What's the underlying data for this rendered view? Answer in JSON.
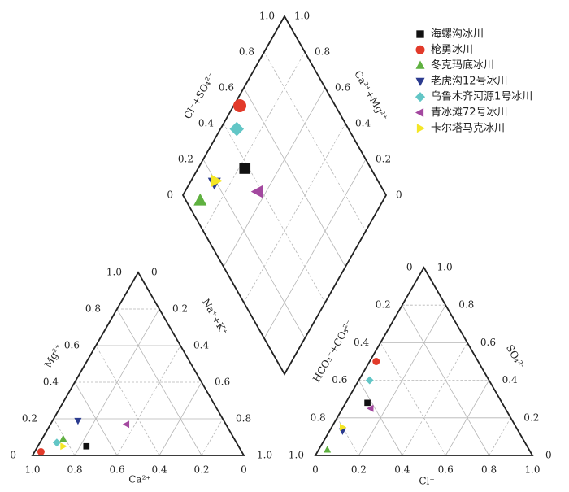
{
  "chart_data": {
    "type": "piper",
    "cation_axes": {
      "ca": "Ca²⁺",
      "mg": "Mg²⁺",
      "nak": "Na⁺+K⁺"
    },
    "anion_axes": {
      "cl": "Cl⁻",
      "so4": "SO₄²⁻",
      "hco3": "HCO₃⁻+CO₃²⁻"
    },
    "diamond_axes": {
      "anion": "Cl⁻+SO₄²⁻",
      "cation": "Ca²⁺+Mg²⁺"
    },
    "ticks": [
      0,
      0.2,
      0.4,
      0.6,
      0.8,
      {
        "value": 1,
        "label": "1.0"
      }
    ],
    "grid": true,
    "legend": "upper right",
    "series": [
      {
        "name": "海螺沟冰川",
        "color": "#111111",
        "marker": "square",
        "ca": 0.72,
        "mg": 0.05,
        "cl": 0.1,
        "so4": 0.28
      },
      {
        "name": "枪勇冰川",
        "color": "#e23a2a",
        "marker": "circle",
        "ca": 0.95,
        "mg": 0.02,
        "cl": 0.03,
        "so4": 0.5
      },
      {
        "name": "冬克玛底冰川",
        "color": "#5fb140",
        "marker": "triangle-up",
        "ca": 0.81,
        "mg": 0.09,
        "cl": 0.04,
        "so4": 0.03
      },
      {
        "name": "老虎沟12号冰川",
        "color": "#2b3b8f",
        "marker": "triangle-down",
        "ca": 0.69,
        "mg": 0.19,
        "cl": 0.06,
        "so4": 0.13
      },
      {
        "name": "乌鲁木齐河源1号冰川",
        "color": "#62c6c6",
        "marker": "diamond",
        "ca": 0.85,
        "mg": 0.07,
        "cl": 0.05,
        "so4": 0.4
      },
      {
        "name": "青冰滩72号冰川",
        "color": "#a3489f",
        "marker": "triangle-left",
        "ca": 0.47,
        "mg": 0.17,
        "cl": 0.13,
        "so4": 0.25
      },
      {
        "name": "卡尔塔马克冰川",
        "color": "#f4e626",
        "marker": "triangle-right",
        "ca": 0.83,
        "mg": 0.05,
        "cl": 0.05,
        "so4": 0.15
      }
    ]
  }
}
